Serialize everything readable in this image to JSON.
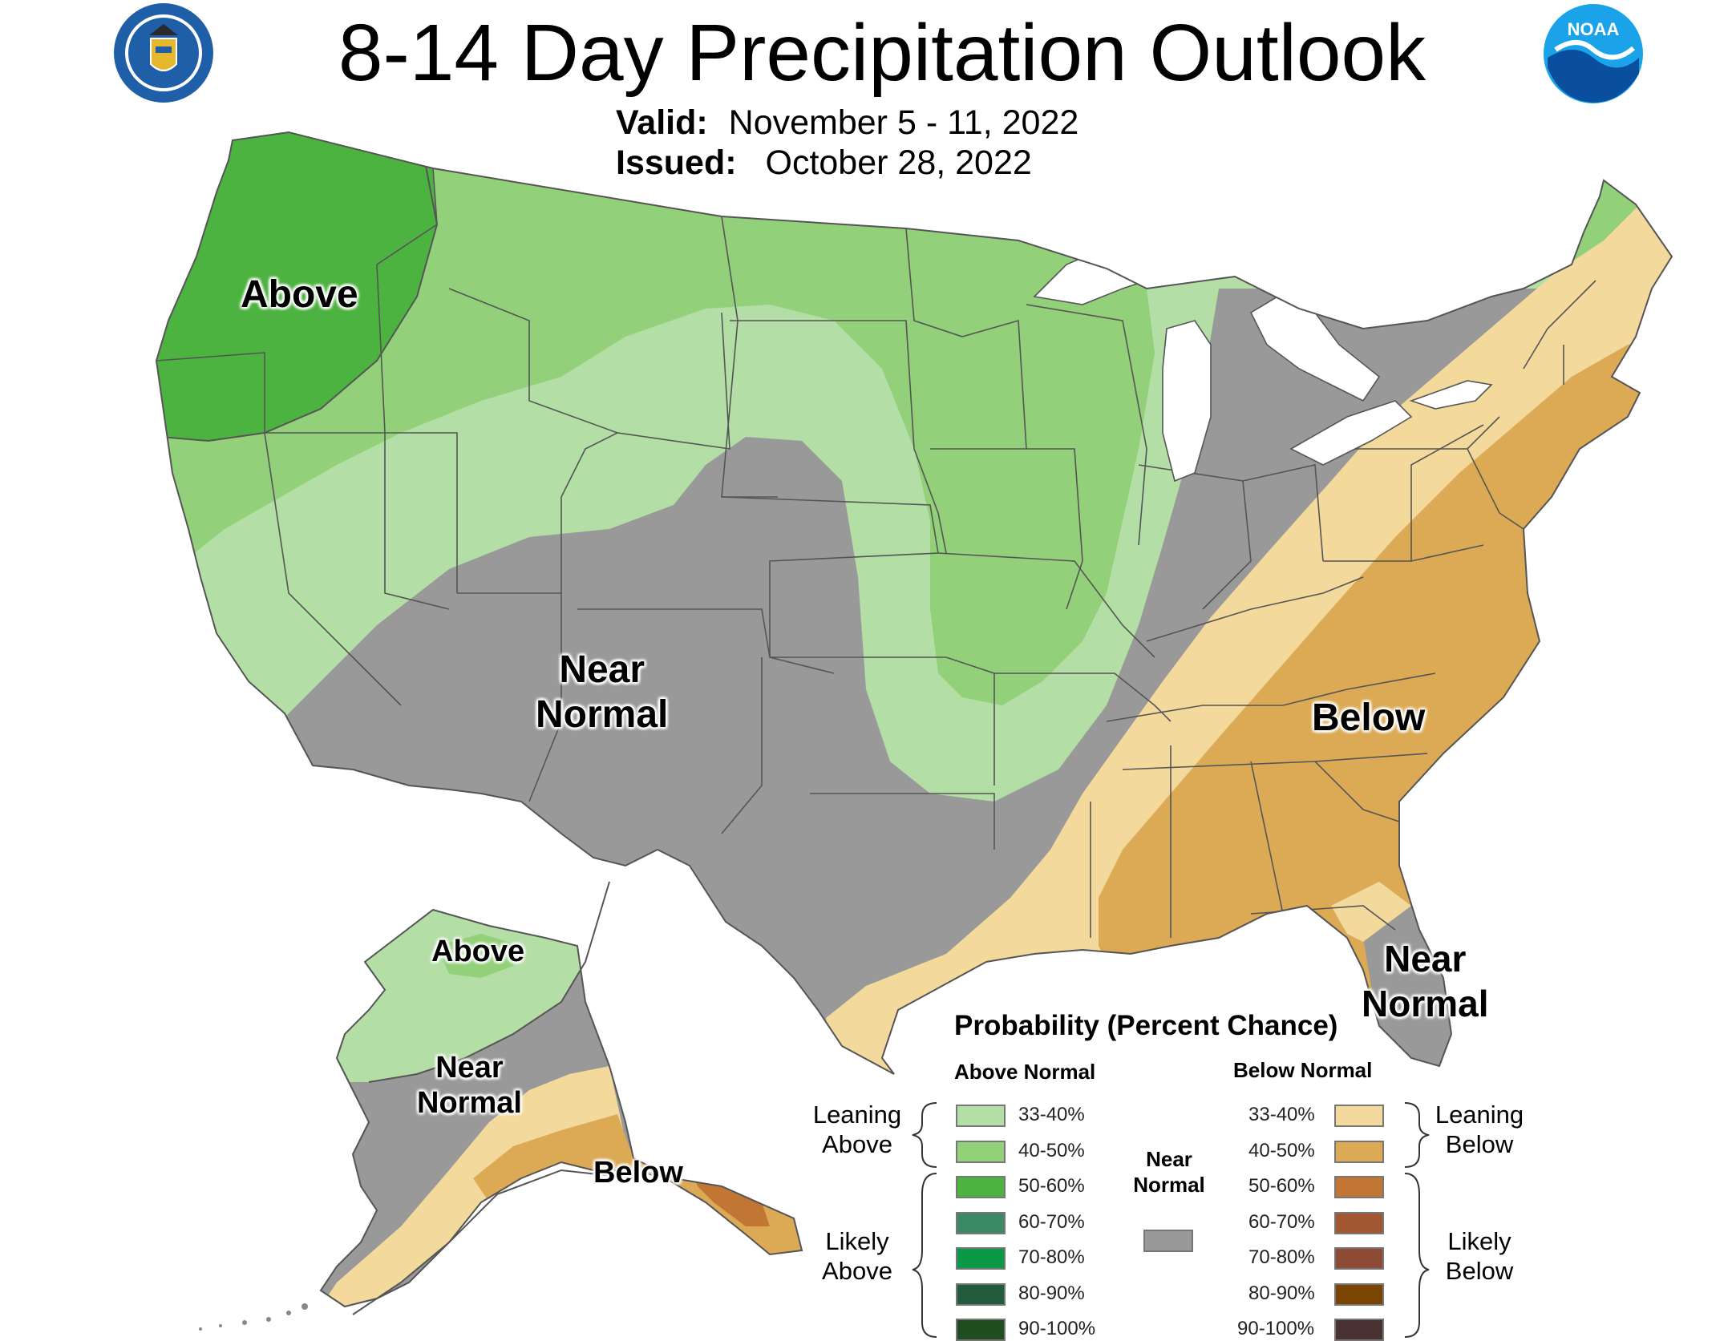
{
  "header": {
    "title": "8-14 Day Precipitation Outlook",
    "valid_label": "Valid:",
    "valid_value": "November 5 - 11, 2022",
    "issued_label": "Issued:",
    "issued_value": "October 28, 2022"
  },
  "logos": {
    "left": "department-of-commerce-seal",
    "right": "noaa-logo",
    "right_text": "NOAA"
  },
  "map_labels": {
    "conus_above": "Above",
    "conus_near_line1": "Near",
    "conus_near_line2": "Normal",
    "conus_below": "Below",
    "florida_near_line1": "Near",
    "florida_near_line2": "Normal",
    "alaska_above": "Above",
    "alaska_near_line1": "Near",
    "alaska_near_line2": "Normal",
    "alaska_below": "Below"
  },
  "legend": {
    "title": "Probability (Percent Chance)",
    "above_header": "Above Normal",
    "below_header": "Below Normal",
    "near_header_line1": "Near",
    "near_header_line2": "Normal",
    "near_color": "#999999",
    "leaning_above_line1": "Leaning",
    "leaning_above_line2": "Above",
    "likely_above_line1": "Likely",
    "likely_above_line2": "Above",
    "leaning_below_line1": "Leaning",
    "leaning_below_line2": "Below",
    "likely_below_line1": "Likely",
    "likely_below_line2": "Below",
    "above_items": [
      {
        "range": "33-40%",
        "color": "#b3dea5"
      },
      {
        "range": "40-50%",
        "color": "#92d07a"
      },
      {
        "range": "50-60%",
        "color": "#4db340"
      },
      {
        "range": "60-70%",
        "color": "#3c8a63"
      },
      {
        "range": "70-80%",
        "color": "#0b9948"
      },
      {
        "range": "80-90%",
        "color": "#225c3c"
      },
      {
        "range": "90-100%",
        "color": "#1f4d1f"
      }
    ],
    "below_items": [
      {
        "range": "33-40%",
        "color": "#f3d99c"
      },
      {
        "range": "40-50%",
        "color": "#dcaa55"
      },
      {
        "range": "50-60%",
        "color": "#c17633"
      },
      {
        "range": "60-70%",
        "color": "#a35834"
      },
      {
        "range": "70-80%",
        "color": "#8e4c37"
      },
      {
        "range": "80-90%",
        "color": "#7a4502"
      },
      {
        "range": "90-100%",
        "color": "#4a3232"
      }
    ]
  },
  "category_colors": {
    "above_33_40": "#b3dea5",
    "above_40_50": "#92d07a",
    "above_50_60": "#4db340",
    "near_normal": "#999999",
    "below_33_40": "#f3d99c",
    "below_40_50": "#dcaa55",
    "below_50_60": "#c17633",
    "water": "#ffffff",
    "border": "#555555"
  }
}
